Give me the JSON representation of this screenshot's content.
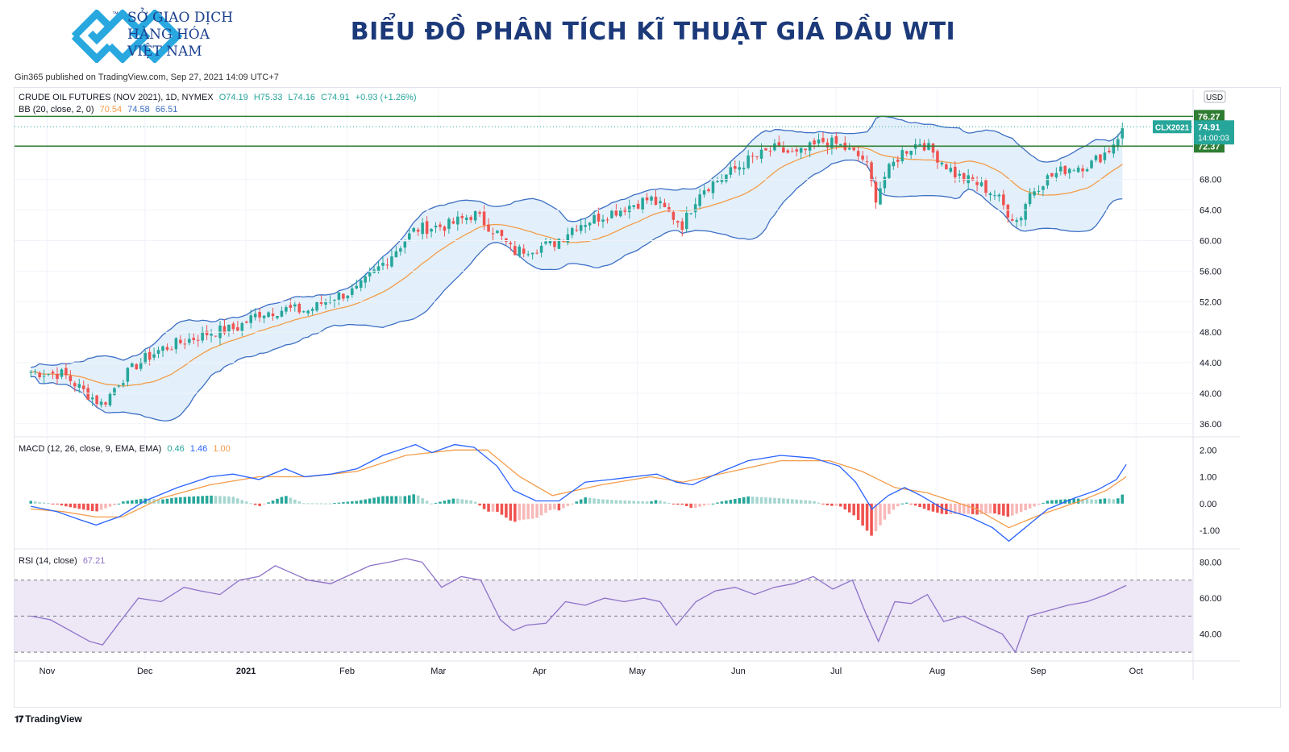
{
  "brand": {
    "line1": "SỞ GIAO DỊCH",
    "line2": "HÀNG HÓA",
    "line3": "VIỆT NAM",
    "tm": "™",
    "color": "#1a3f8f",
    "icon_color": "#29a8e0"
  },
  "headline": "BIỂU ĐỒ PHÂN TÍCH KĨ THUẬT GIÁ DẦU WTI",
  "published": "Gin365 published on TradingView.com, Sep 27, 2021 14:09 UTC+7",
  "tradingview_label": "TradingView",
  "legend": {
    "symbol": "CRUDE OIL FUTURES (NOV 2021), 1D, NYMEX",
    "o": "O74.19",
    "h": "H75.33",
    "l": "L74.16",
    "c": "C74.91",
    "chg": "+0.93 (+1.26%)",
    "bb": "BB (20, close, 2, 0)",
    "bb_mid": "70.54",
    "bb_up": "74.58",
    "bb_low": "66.51",
    "macd": "MACD (12, 26, close, 9, EMA, EMA)",
    "macd_hist": "0.46",
    "macd_line": "1.46",
    "macd_signal": "1.00",
    "rsi": "RSI (14, close)",
    "rsi_val": "67.21"
  },
  "colors": {
    "up": "#26a69a",
    "down": "#ef5350",
    "bb_band": "#3d6fc4",
    "bb_mid": "#f39c4a",
    "bb_fill": "#e3f0fb",
    "hline": "#2e7d32",
    "macd": "#2962ff",
    "signal": "#f39c4a",
    "rsi": "#8e72c8",
    "rsi_fill": "#ede7f6",
    "axis_text": "#131722"
  },
  "chart_data": [
    {
      "type": "candlestick",
      "title": "CRUDE OIL FUTURES (NOV 2021), 1D, NYMEX",
      "currency": "USD",
      "ylim": [
        34.5,
        78
      ],
      "y_ticks": [
        "76.00",
        "72.00",
        "68.00",
        "64.00",
        "60.00",
        "56.00",
        "52.00",
        "48.00",
        "44.00",
        "40.00",
        "36.00"
      ],
      "x_ticks": [
        "Nov",
        "Dec",
        "2021",
        "Feb",
        "Mar",
        "Apr",
        "May",
        "Jun",
        "Jul",
        "Aug",
        "Sep",
        "Oct"
      ],
      "x_tick_days": [
        5,
        35,
        66,
        97,
        125,
        156,
        186,
        217,
        247,
        278,
        309,
        339
      ],
      "horizontal_levels": [
        {
          "value": 76.27,
          "label": "76.27"
        },
        {
          "value": 72.37,
          "label": "72.37"
        }
      ],
      "last_price": {
        "symbol": "CLX2021",
        "value": 74.91,
        "label": "74.91",
        "countdown": "14:00:03"
      },
      "price_path": [
        [
          0,
          42.8
        ],
        [
          10,
          42.5
        ],
        [
          17,
          40.0
        ],
        [
          22,
          38.5
        ],
        [
          27,
          41.5
        ],
        [
          33,
          44.0
        ],
        [
          40,
          45.8
        ],
        [
          47,
          46.8
        ],
        [
          55,
          48.0
        ],
        [
          63,
          48.5
        ],
        [
          70,
          50.5
        ],
        [
          78,
          51.0
        ],
        [
          85,
          50.8
        ],
        [
          92,
          52.5
        ],
        [
          100,
          53.5
        ],
        [
          108,
          57.0
        ],
        [
          118,
          61.5
        ],
        [
          128,
          62.0
        ],
        [
          136,
          63.5
        ],
        [
          143,
          61.0
        ],
        [
          148,
          58.5
        ],
        [
          153,
          59.0
        ],
        [
          160,
          59.5
        ],
        [
          167,
          62.0
        ],
        [
          175,
          63.2
        ],
        [
          183,
          64.5
        ],
        [
          190,
          65.5
        ],
        [
          196,
          63.5
        ],
        [
          200,
          62.0
        ],
        [
          205,
          66.5
        ],
        [
          213,
          68.5
        ],
        [
          220,
          70.5
        ],
        [
          228,
          72.0
        ],
        [
          235,
          71.2
        ],
        [
          243,
          73.0
        ],
        [
          248,
          72.5
        ],
        [
          252,
          71.5
        ],
        [
          256,
          70.5
        ],
        [
          259,
          65.5
        ],
        [
          262,
          68.5
        ],
        [
          267,
          71.5
        ],
        [
          273,
          73.0
        ],
        [
          278,
          71.0
        ],
        [
          284,
          68.5
        ],
        [
          290,
          67.5
        ],
        [
          296,
          66.0
        ],
        [
          300,
          63.5
        ],
        [
          303,
          62.5
        ],
        [
          306,
          66.0
        ],
        [
          311,
          68.0
        ],
        [
          318,
          69.5
        ],
        [
          325,
          70.0
        ],
        [
          331,
          72.0
        ],
        [
          333,
          73.5
        ],
        [
          336,
          74.91
        ]
      ]
    },
    {
      "type": "macd",
      "title": "MACD (12, 26, close, 9, EMA, EMA)",
      "ylim": [
        -1.6,
        2.4
      ],
      "y_ticks": [
        "2.00",
        "1.00",
        "0.00",
        "-1.00"
      ],
      "macd_path": [
        [
          0,
          -0.1
        ],
        [
          8,
          -0.3
        ],
        [
          15,
          -0.6
        ],
        [
          20,
          -0.8
        ],
        [
          27,
          -0.5
        ],
        [
          35,
          0.1
        ],
        [
          45,
          0.6
        ],
        [
          55,
          1.0
        ],
        [
          62,
          1.1
        ],
        [
          70,
          0.9
        ],
        [
          78,
          1.3
        ],
        [
          84,
          1.0
        ],
        [
          92,
          1.1
        ],
        [
          100,
          1.3
        ],
        [
          108,
          1.8
        ],
        [
          118,
          2.2
        ],
        [
          123,
          1.9
        ],
        [
          130,
          2.2
        ],
        [
          136,
          2.1
        ],
        [
          143,
          1.4
        ],
        [
          148,
          0.5
        ],
        [
          155,
          0.1
        ],
        [
          162,
          0.1
        ],
        [
          170,
          0.8
        ],
        [
          178,
          0.9
        ],
        [
          185,
          1.0
        ],
        [
          192,
          1.1
        ],
        [
          198,
          0.8
        ],
        [
          203,
          0.7
        ],
        [
          212,
          1.2
        ],
        [
          220,
          1.6
        ],
        [
          230,
          1.8
        ],
        [
          240,
          1.7
        ],
        [
          248,
          1.4
        ],
        [
          253,
          0.8
        ],
        [
          258,
          -0.2
        ],
        [
          263,
          0.3
        ],
        [
          268,
          0.6
        ],
        [
          273,
          0.3
        ],
        [
          280,
          -0.2
        ],
        [
          288,
          -0.5
        ],
        [
          295,
          -0.9
        ],
        [
          300,
          -1.4
        ],
        [
          305,
          -0.9
        ],
        [
          312,
          -0.2
        ],
        [
          320,
          0.2
        ],
        [
          327,
          0.5
        ],
        [
          333,
          0.9
        ],
        [
          336,
          1.46
        ]
      ],
      "signal_path": [
        [
          0,
          -0.2
        ],
        [
          10,
          -0.3
        ],
        [
          20,
          -0.5
        ],
        [
          28,
          -0.5
        ],
        [
          40,
          0.2
        ],
        [
          55,
          0.7
        ],
        [
          70,
          1.0
        ],
        [
          85,
          1.0
        ],
        [
          100,
          1.2
        ],
        [
          115,
          1.8
        ],
        [
          130,
          2.0
        ],
        [
          140,
          2.0
        ],
        [
          150,
          1.0
        ],
        [
          160,
          0.3
        ],
        [
          175,
          0.7
        ],
        [
          190,
          1.0
        ],
        [
          200,
          0.8
        ],
        [
          215,
          1.2
        ],
        [
          230,
          1.6
        ],
        [
          245,
          1.6
        ],
        [
          255,
          1.2
        ],
        [
          265,
          0.6
        ],
        [
          275,
          0.4
        ],
        [
          290,
          -0.2
        ],
        [
          300,
          -0.9
        ],
        [
          310,
          -0.4
        ],
        [
          322,
          0.1
        ],
        [
          330,
          0.5
        ],
        [
          336,
          1.0
        ]
      ]
    },
    {
      "type": "rsi",
      "title": "RSI (14, close)",
      "ylim": [
        26,
        86
      ],
      "y_ticks": [
        "80.00",
        "60.00",
        "40.00"
      ],
      "bands": [
        70,
        50,
        30
      ],
      "rsi_path": [
        [
          0,
          50
        ],
        [
          6,
          48
        ],
        [
          12,
          42
        ],
        [
          18,
          36
        ],
        [
          22,
          34
        ],
        [
          27,
          46
        ],
        [
          33,
          60
        ],
        [
          40,
          58
        ],
        [
          47,
          66
        ],
        [
          52,
          64
        ],
        [
          58,
          62
        ],
        [
          64,
          70
        ],
        [
          70,
          72
        ],
        [
          75,
          78
        ],
        [
          80,
          74
        ],
        [
          85,
          70
        ],
        [
          92,
          68
        ],
        [
          98,
          73
        ],
        [
          104,
          78
        ],
        [
          110,
          80
        ],
        [
          115,
          82
        ],
        [
          120,
          80
        ],
        [
          126,
          66
        ],
        [
          132,
          72
        ],
        [
          138,
          70
        ],
        [
          144,
          48
        ],
        [
          148,
          42
        ],
        [
          152,
          45
        ],
        [
          158,
          46
        ],
        [
          164,
          58
        ],
        [
          170,
          56
        ],
        [
          176,
          60
        ],
        [
          182,
          58
        ],
        [
          188,
          60
        ],
        [
          193,
          58
        ],
        [
          198,
          45
        ],
        [
          204,
          58
        ],
        [
          210,
          64
        ],
        [
          216,
          66
        ],
        [
          222,
          62
        ],
        [
          228,
          66
        ],
        [
          234,
          68
        ],
        [
          240,
          72
        ],
        [
          246,
          65
        ],
        [
          252,
          70
        ],
        [
          256,
          52
        ],
        [
          260,
          36
        ],
        [
          265,
          58
        ],
        [
          270,
          57
        ],
        [
          275,
          62
        ],
        [
          280,
          47
        ],
        [
          286,
          50
        ],
        [
          292,
          45
        ],
        [
          298,
          40
        ],
        [
          302,
          30
        ],
        [
          306,
          50
        ],
        [
          312,
          53
        ],
        [
          318,
          56
        ],
        [
          324,
          58
        ],
        [
          330,
          62
        ],
        [
          336,
          67
        ]
      ]
    }
  ]
}
